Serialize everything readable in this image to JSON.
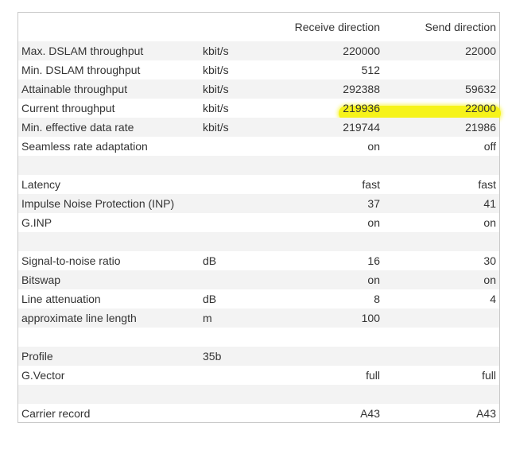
{
  "header": {
    "receive": "Receive direction",
    "send": "Send direction"
  },
  "highlight_color": "#f6f31a",
  "rows": [
    {
      "label": "Max. DSLAM throughput",
      "unit": "kbit/s",
      "recv": "220000",
      "send": "22000"
    },
    {
      "label": "Min. DSLAM throughput",
      "unit": "kbit/s",
      "recv": "512",
      "send": ""
    },
    {
      "label": "Attainable throughput",
      "unit": "kbit/s",
      "recv": "292388",
      "send": "59632"
    },
    {
      "label": "Current throughput",
      "unit": "kbit/s",
      "recv": "219936",
      "send": "22000"
    },
    {
      "label": "Min. effective data rate",
      "unit": "kbit/s",
      "recv": "219744",
      "send": "21986"
    },
    {
      "label": "Seamless rate adaptation",
      "unit": "",
      "recv": "on",
      "send": "off"
    },
    {
      "label": "",
      "unit": "",
      "recv": "",
      "send": ""
    },
    {
      "label": "Latency",
      "unit": "",
      "recv": "fast",
      "send": "fast"
    },
    {
      "label": "Impulse Noise Protection (INP)",
      "unit": "",
      "recv": "37",
      "send": "41"
    },
    {
      "label": "G.INP",
      "unit": "",
      "recv": "on",
      "send": "on"
    },
    {
      "label": "",
      "unit": "",
      "recv": "",
      "send": ""
    },
    {
      "label": "Signal-to-noise ratio",
      "unit": "dB",
      "recv": "16",
      "send": "30"
    },
    {
      "label": "Bitswap",
      "unit": "",
      "recv": "on",
      "send": "on"
    },
    {
      "label": "Line attenuation",
      "unit": "dB",
      "recv": "8",
      "send": "4"
    },
    {
      "label": "approximate line length",
      "unit": "m",
      "recv": "100",
      "send": ""
    },
    {
      "label": "",
      "unit": "",
      "recv": "",
      "send": ""
    },
    {
      "label": "Profile",
      "unit": "35b",
      "recv": "",
      "send": ""
    },
    {
      "label": "G.Vector",
      "unit": "",
      "recv": "full",
      "send": "full"
    },
    {
      "label": "",
      "unit": "",
      "recv": "",
      "send": ""
    },
    {
      "label": "Carrier record",
      "unit": "",
      "recv": "A43",
      "send": "A43"
    }
  ]
}
